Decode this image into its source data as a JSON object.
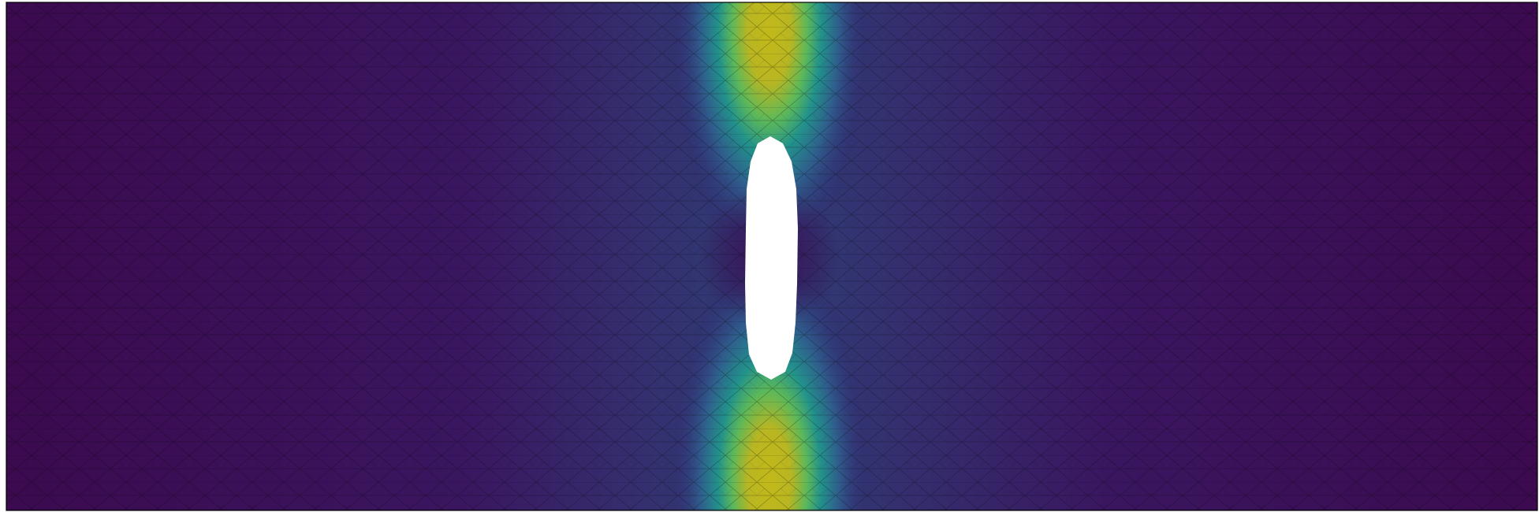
{
  "figure": {
    "subject": "finite-element-mesh-field-plot",
    "colormap": "viridis",
    "colors": {
      "low": "#440154",
      "low_mid": "#30256f",
      "mid": "#21918c",
      "high_mid": "#5ec962",
      "high": "#bdb81e",
      "mesh_line": "#000000",
      "outline": "#000000",
      "hole_fill": "#ffffff"
    },
    "features": [
      "triangular-mesh",
      "elongated-slot-hole",
      "stress-concentration-bands"
    ]
  }
}
